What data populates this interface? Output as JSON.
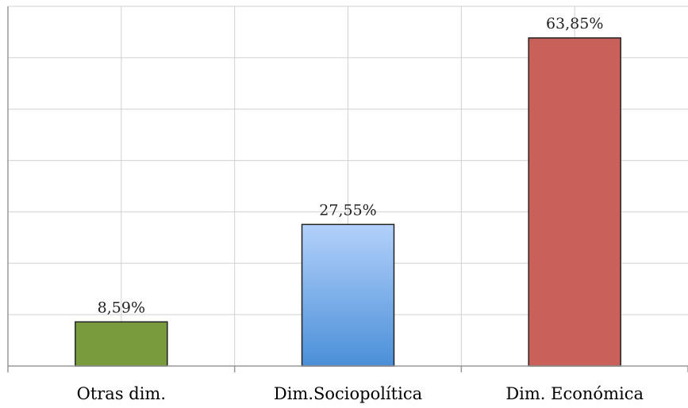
{
  "chart_data": {
    "type": "bar",
    "title": "",
    "xlabel": "",
    "ylabel": "",
    "categories": [
      "Otras dim.",
      "Dim.Sociopolítica",
      "Dim. Económica"
    ],
    "values": [
      8.59,
      27.55,
      63.85
    ],
    "value_labels": [
      "8,59%",
      "27,55%",
      "63,85%"
    ],
    "ylim": [
      0,
      70
    ],
    "grid": true,
    "bar_colors": [
      "#7a9a3e",
      "#6fa8e6",
      "#c9605a"
    ]
  }
}
